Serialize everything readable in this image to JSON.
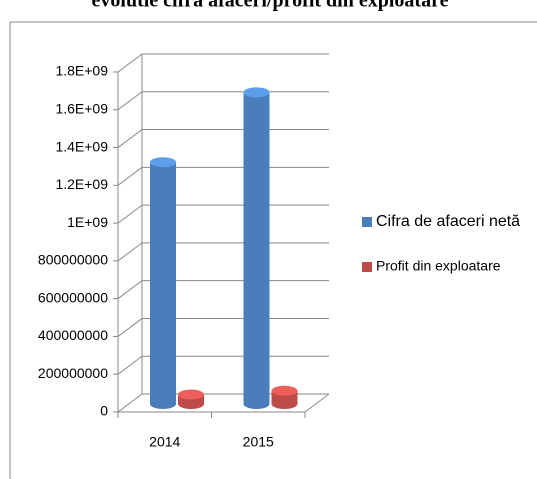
{
  "chart_data": {
    "type": "bar",
    "title": "evolutie cifra afaceri/profit din exploatare",
    "categories": [
      "2014",
      "2015"
    ],
    "series": [
      {
        "name": "Cifra de afaceri netă",
        "color": "#4a7ebb",
        "values": [
          1280000000,
          1650000000
        ]
      },
      {
        "name": "Profit din exploatare",
        "color": "#be4b48",
        "values": [
          50000000,
          70000000
        ]
      }
    ],
    "ylim": [
      0,
      1800000000
    ],
    "yticks": [
      0,
      200000000,
      400000000,
      600000000,
      800000000,
      {
        "value": 1000000000,
        "label": "1E+09"
      },
      {
        "value": 1200000000,
        "label": "1.2E+09"
      },
      {
        "value": 1400000000,
        "label": "1.4E+09"
      },
      {
        "value": 1600000000,
        "label": "1.6E+09"
      },
      {
        "value": 1800000000,
        "label": "1.8E+09"
      }
    ],
    "grid": true,
    "legend": "right"
  }
}
